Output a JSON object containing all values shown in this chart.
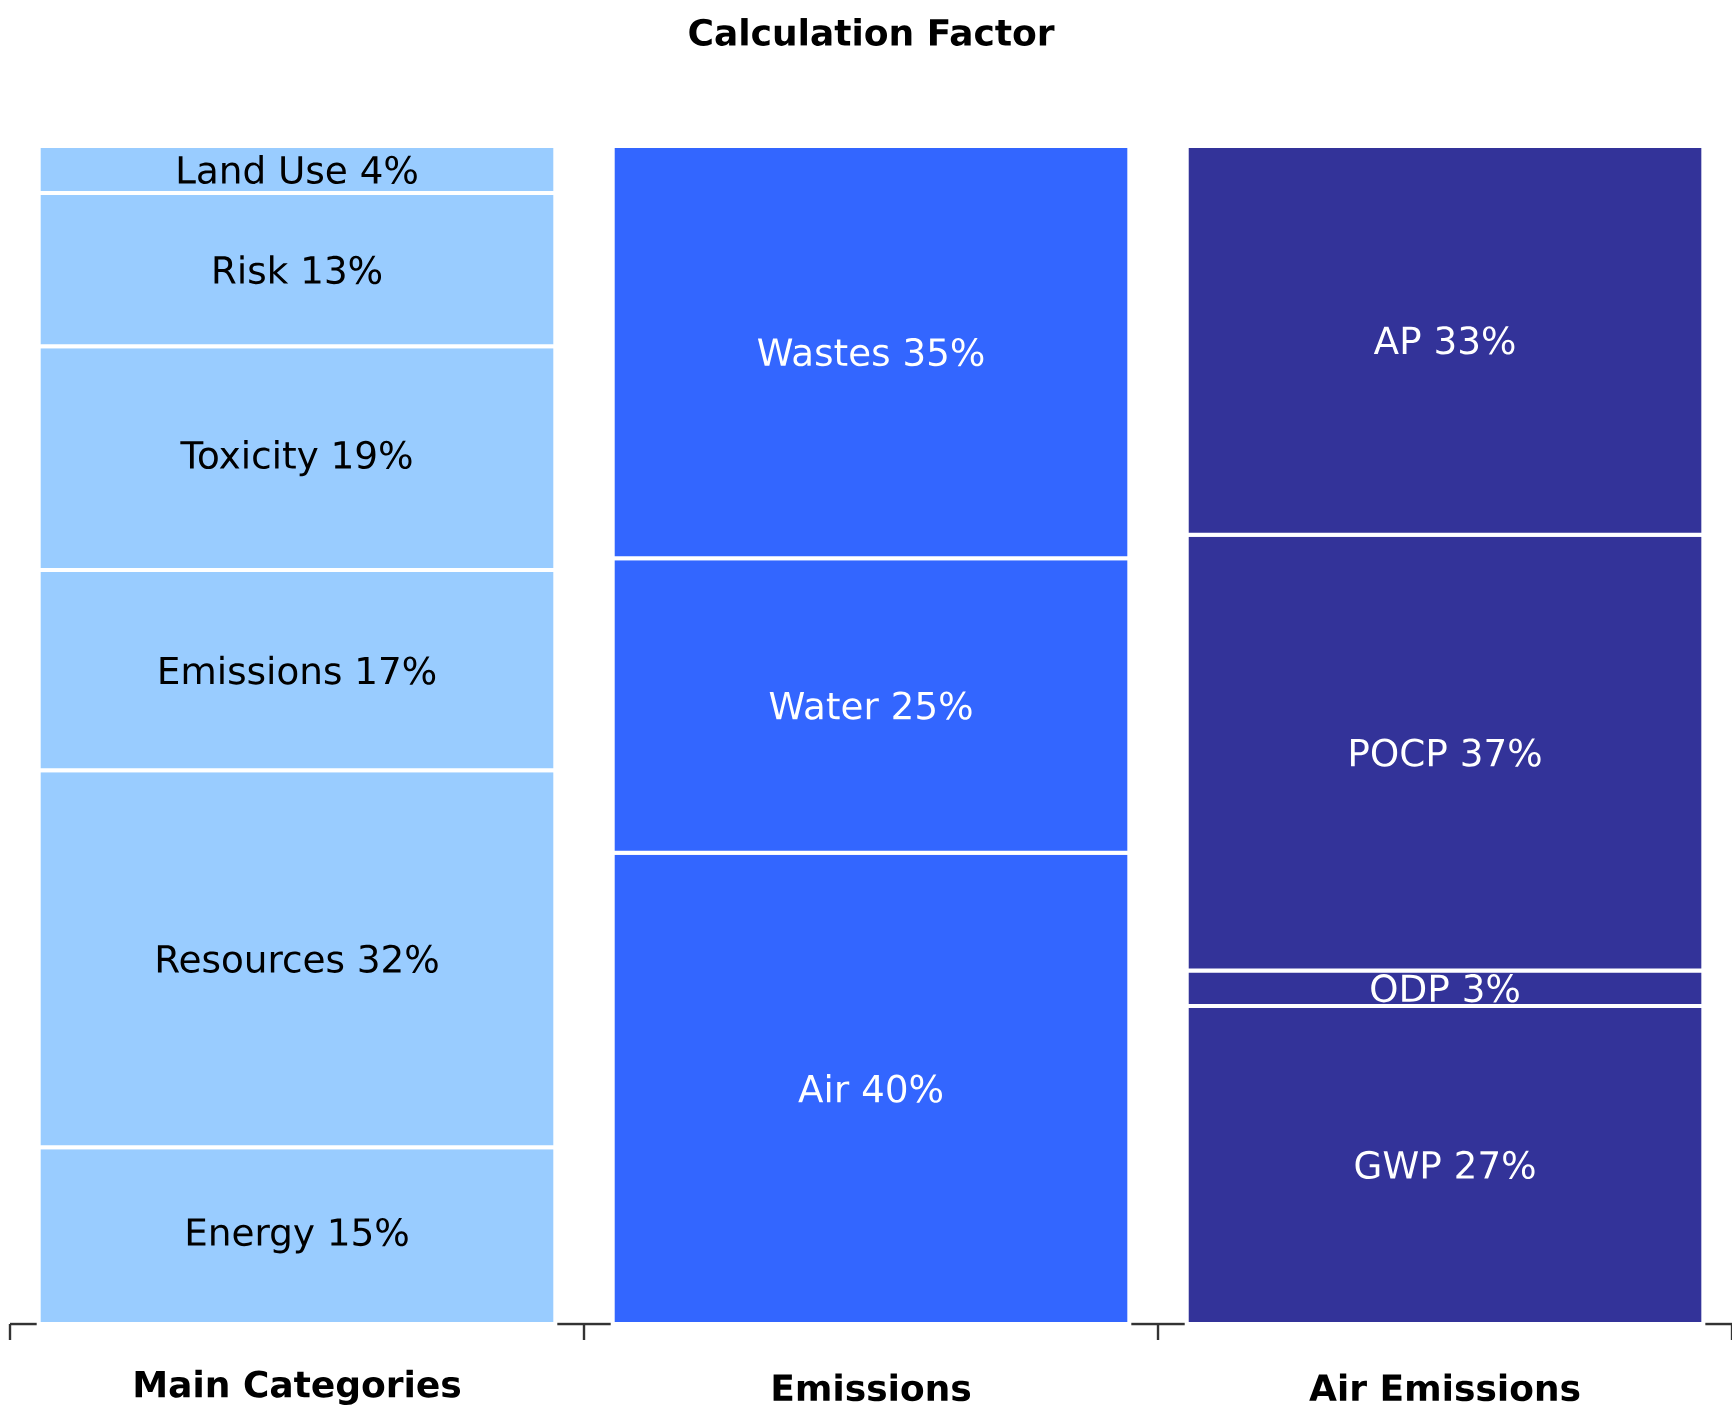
{
  "chart_data": {
    "type": "bar",
    "title": "Calculation Factor",
    "categories": [
      "Main Categories",
      "Emissions",
      "Air Emissions"
    ],
    "stacked": true,
    "ylim": [
      0,
      100
    ],
    "tick_labels": "x",
    "series": [
      {
        "name": "Energy",
        "color": "#99ccff",
        "values": [
          15,
          null,
          null
        ],
        "value_labels": [
          "15%",
          null,
          null
        ]
      },
      {
        "name": "Resources",
        "color": "#99ccff",
        "values": [
          32,
          null,
          null
        ],
        "value_labels": [
          "32%",
          null,
          null
        ]
      },
      {
        "name": "Emissions",
        "color": "#99ccff",
        "values": [
          17,
          null,
          null
        ],
        "value_labels": [
          "17%",
          null,
          null
        ]
      },
      {
        "name": "Toxicity",
        "color": "#99ccff",
        "values": [
          19,
          null,
          null
        ],
        "value_labels": [
          "19%",
          null,
          null
        ]
      },
      {
        "name": "Risk",
        "color": "#99ccff",
        "values": [
          13,
          null,
          null
        ],
        "value_labels": [
          "13%",
          null,
          null
        ]
      },
      {
        "name": "Land Use",
        "color": "#99ccff",
        "values": [
          4,
          null,
          null
        ],
        "value_labels": [
          "4%",
          null,
          null
        ]
      },
      {
        "name": "Air",
        "color": "#3366ff",
        "values": [
          null,
          40,
          null
        ],
        "value_labels": [
          null,
          "40%",
          null
        ]
      },
      {
        "name": "Water",
        "color": "#3366ff",
        "values": [
          null,
          25,
          null
        ],
        "value_labels": [
          null,
          "25%",
          null
        ]
      },
      {
        "name": "Wastes",
        "color": "#3366ff",
        "values": [
          null,
          35,
          null
        ],
        "value_labels": [
          null,
          "35%",
          null
        ]
      },
      {
        "name": "GWP",
        "color": "#333399",
        "values": [
          null,
          null,
          27
        ],
        "value_labels": [
          null,
          null,
          "27%"
        ]
      },
      {
        "name": "ODP",
        "color": "#333399",
        "values": [
          null,
          null,
          3
        ],
        "value_labels": [
          null,
          null,
          "3%"
        ]
      },
      {
        "name": "POCP",
        "color": "#333399",
        "values": [
          null,
          null,
          37
        ],
        "value_labels": [
          null,
          null,
          "37%"
        ]
      },
      {
        "name": "AP",
        "color": "#333399",
        "values": [
          null,
          null,
          33
        ],
        "value_labels": [
          null,
          null,
          "33%"
        ]
      }
    ]
  }
}
